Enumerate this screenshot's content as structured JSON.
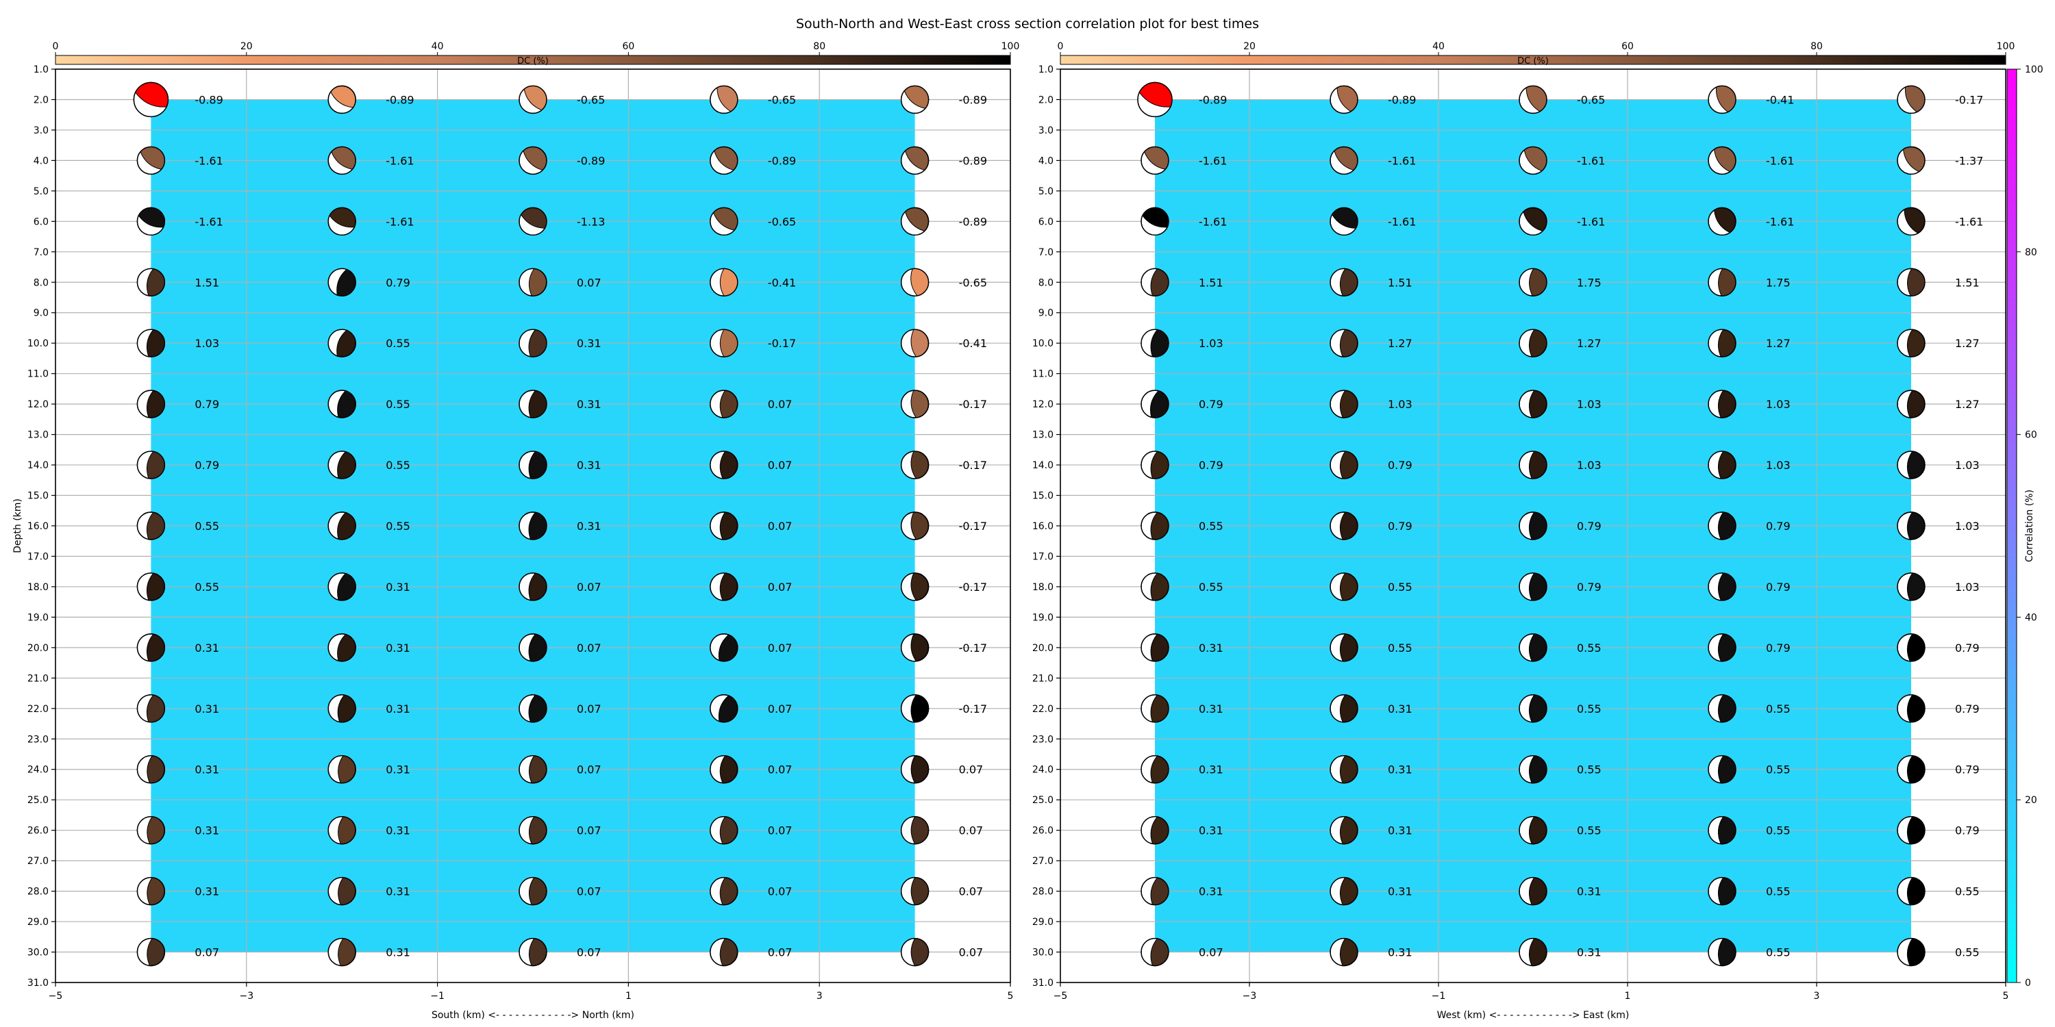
{
  "figure": {
    "title": "South-North and West-East cross section correlation plot for best times"
  },
  "colors": {
    "fill_region": "#29d6fb",
    "grid": "#b0b0b0",
    "axes": "#000000"
  },
  "dc_colorbar": {
    "label": "DC (%)",
    "ticks": [
      "0",
      "20",
      "40",
      "60",
      "80",
      "100"
    ],
    "stops": [
      "#fcd6a0",
      "#f09a6a",
      "#c8815c",
      "#8a5a3e",
      "#4a3020",
      "#000000"
    ]
  },
  "correlation_colorbar": {
    "label": "Correlation (%)",
    "ticks": [
      "0",
      "20",
      "40",
      "60",
      "80",
      "100"
    ],
    "stops": [
      "#00ffff",
      "#ff00ff"
    ]
  },
  "chart_data": [
    {
      "type": "scatter",
      "title": "",
      "xlabel": "South (km) <- - - - - - - - - - - -> North (km)",
      "ylabel": "Depth (km)",
      "xlim": [
        -5,
        5
      ],
      "ylim": [
        31,
        1
      ],
      "xticks": [
        -5,
        -3,
        -1,
        1,
        3,
        5
      ],
      "xtick_labels": [
        "−5",
        "−3",
        "−1",
        "1",
        "3",
        "5"
      ],
      "yticks": [
        1,
        2,
        3,
        4,
        5,
        6,
        7,
        8,
        9,
        10,
        11,
        12,
        13,
        14,
        15,
        16,
        17,
        18,
        19,
        20,
        21,
        22,
        23,
        24,
        25,
        26,
        27,
        28,
        29,
        30,
        31
      ],
      "ytick_labels": [
        "1.0",
        "2.0",
        "3.0",
        "4.0",
        "5.0",
        "6.0",
        "7.0",
        "8.0",
        "9.0",
        "10.0",
        "11.0",
        "12.0",
        "13.0",
        "14.0",
        "15.0",
        "16.0",
        "17.0",
        "18.0",
        "19.0",
        "20.0",
        "21.0",
        "22.0",
        "23.0",
        "24.0",
        "25.0",
        "26.0",
        "27.0",
        "28.0",
        "29.0",
        "30.0",
        "31.0"
      ],
      "fill_region": {
        "x": [
          -4,
          4
        ],
        "y": [
          2,
          30
        ]
      },
      "x": [
        -4,
        -2,
        0,
        2,
        4
      ],
      "depths": [
        2,
        4,
        6,
        8,
        10,
        12,
        14,
        16,
        18,
        20,
        22,
        24,
        26,
        28,
        30
      ],
      "labels": [
        [
          "-0.89",
          "-0.89",
          "-0.65",
          "-0.65",
          "-0.89"
        ],
        [
          "-1.61",
          "-1.61",
          "-0.89",
          "-0.89",
          "-0.89"
        ],
        [
          "-1.61",
          "-1.61",
          "-1.13",
          "-0.65",
          "-0.89"
        ],
        [
          "1.51",
          "0.79",
          "0.07",
          "-0.41",
          "-0.65"
        ],
        [
          "1.03",
          "0.55",
          "0.31",
          "-0.17",
          "-0.41"
        ],
        [
          "0.79",
          "0.55",
          "0.31",
          "0.07",
          "-0.17"
        ],
        [
          "0.79",
          "0.55",
          "0.31",
          "0.07",
          "-0.17"
        ],
        [
          "0.55",
          "0.55",
          "0.31",
          "0.07",
          "-0.17"
        ],
        [
          "0.55",
          "0.31",
          "0.07",
          "0.07",
          "-0.17"
        ],
        [
          "0.31",
          "0.31",
          "0.07",
          "0.07",
          "-0.17"
        ],
        [
          "0.31",
          "0.31",
          "0.07",
          "0.07",
          "-0.17"
        ],
        [
          "0.31",
          "0.31",
          "0.07",
          "0.07",
          "0.07"
        ],
        [
          "0.31",
          "0.31",
          "0.07",
          "0.07",
          "0.07"
        ],
        [
          "0.31",
          "0.31",
          "0.07",
          "0.07",
          "0.07"
        ],
        [
          "0.07",
          "0.31",
          "0.07",
          "0.07",
          "0.07"
        ]
      ],
      "mechanisms": [
        [
          {
            "c": "#ff0000",
            "s": "large",
            "a": 25
          },
          {
            "c": "#e8915f",
            "a": 35
          },
          {
            "c": "#d88a5c",
            "a": 50
          },
          {
            "c": "#c8815c",
            "a": 60
          },
          {
            "c": "#b0704a",
            "a": 40
          }
        ],
        [
          {
            "c": "#8a5a3e",
            "a": 40
          },
          {
            "c": "#8a5a3e",
            "a": 40
          },
          {
            "c": "#8a5a3e",
            "a": 45
          },
          {
            "c": "#8a5a3e",
            "a": 45
          },
          {
            "c": "#8a5a3e",
            "a": 45
          }
        ],
        [
          {
            "c": "#111111",
            "a": 25
          },
          {
            "c": "#3a2414",
            "a": 25
          },
          {
            "c": "#4a3020",
            "a": 30
          },
          {
            "c": "#7a5034",
            "a": 40
          },
          {
            "c": "#7a5034",
            "a": 45
          }
        ],
        [
          {
            "c": "#4a3020",
            "a": 100
          },
          {
            "c": "#111111",
            "a": 110
          },
          {
            "c": "#7a5034",
            "a": 95
          },
          {
            "c": "#e8915f",
            "a": 90
          },
          {
            "c": "#e8915f",
            "a": 80
          }
        ],
        [
          {
            "c": "#2a1a10",
            "a": 100
          },
          {
            "c": "#2a1a10",
            "a": 110
          },
          {
            "c": "#4a3020",
            "a": 100
          },
          {
            "c": "#b0704a",
            "a": 90
          },
          {
            "c": "#c8815c",
            "a": 85
          }
        ],
        [
          {
            "c": "#2a1a10",
            "a": 100
          },
          {
            "c": "#111111",
            "a": 105
          },
          {
            "c": "#2a1a10",
            "a": 100
          },
          {
            "c": "#5a3a24",
            "a": 95
          },
          {
            "c": "#8a5a3e",
            "a": 85
          }
        ],
        [
          {
            "c": "#4a3020",
            "a": 100
          },
          {
            "c": "#2a1a10",
            "a": 105
          },
          {
            "c": "#111111",
            "a": 100
          },
          {
            "c": "#2a1a10",
            "a": 95
          },
          {
            "c": "#5a3a24",
            "a": 85
          }
        ],
        [
          {
            "c": "#4a3020",
            "a": 100
          },
          {
            "c": "#2a1a10",
            "a": 105
          },
          {
            "c": "#111111",
            "a": 100
          },
          {
            "c": "#2a1a10",
            "a": 95
          },
          {
            "c": "#5a3a24",
            "a": 85
          }
        ],
        [
          {
            "c": "#2a1a10",
            "a": 100
          },
          {
            "c": "#111111",
            "a": 105
          },
          {
            "c": "#2a1a10",
            "a": 100
          },
          {
            "c": "#2a1a10",
            "a": 95
          },
          {
            "c": "#3a2414",
            "a": 85
          }
        ],
        [
          {
            "c": "#2a1a10",
            "a": 100
          },
          {
            "c": "#2a1a10",
            "a": 105
          },
          {
            "c": "#111111",
            "a": 100
          },
          {
            "c": "#111111",
            "a": 110
          },
          {
            "c": "#2a1a10",
            "a": 85
          }
        ],
        [
          {
            "c": "#4a3020",
            "a": 100
          },
          {
            "c": "#2a1a10",
            "a": 100
          },
          {
            "c": "#111111",
            "a": 100
          },
          {
            "c": "#111111",
            "a": 110
          },
          {
            "c": "#000000",
            "a": 95
          }
        ],
        [
          {
            "c": "#4a3020",
            "a": 95
          },
          {
            "c": "#5a3a24",
            "a": 95
          },
          {
            "c": "#4a3020",
            "a": 95
          },
          {
            "c": "#2a1a10",
            "a": 95
          },
          {
            "c": "#2a1a10",
            "a": 90
          }
        ],
        [
          {
            "c": "#5a3a24",
            "a": 95
          },
          {
            "c": "#5a3a24",
            "a": 95
          },
          {
            "c": "#4a3020",
            "a": 95
          },
          {
            "c": "#4a3020",
            "a": 95
          },
          {
            "c": "#4a3020",
            "a": 90
          }
        ],
        [
          {
            "c": "#5a3a24",
            "a": 95
          },
          {
            "c": "#4a3020",
            "a": 95
          },
          {
            "c": "#4a3020",
            "a": 95
          },
          {
            "c": "#4a3020",
            "a": 95
          },
          {
            "c": "#4a3020",
            "a": 90
          }
        ],
        [
          {
            "c": "#4a3020",
            "a": 95
          },
          {
            "c": "#5a3a24",
            "a": 95
          },
          {
            "c": "#4a3020",
            "a": 95
          },
          {
            "c": "#4a3020",
            "a": 95
          },
          {
            "c": "#4a3020",
            "a": 90
          }
        ]
      ]
    },
    {
      "type": "scatter",
      "title": "",
      "xlabel": "West (km) <- - - - - - - - - - - -> East (km)",
      "ylabel": "",
      "xlim": [
        -5,
        5
      ],
      "ylim": [
        31,
        1
      ],
      "xticks": [
        -5,
        -3,
        -1,
        1,
        3,
        5
      ],
      "xtick_labels": [
        "−5",
        "−3",
        "−1",
        "1",
        "3",
        "5"
      ],
      "yticks": [
        1,
        2,
        3,
        4,
        5,
        6,
        7,
        8,
        9,
        10,
        11,
        12,
        13,
        14,
        15,
        16,
        17,
        18,
        19,
        20,
        21,
        22,
        23,
        24,
        25,
        26,
        27,
        28,
        29,
        30,
        31
      ],
      "ytick_labels": [
        "1.0",
        "2.0",
        "3.0",
        "4.0",
        "5.0",
        "6.0",
        "7.0",
        "8.0",
        "9.0",
        "10.0",
        "11.0",
        "12.0",
        "13.0",
        "14.0",
        "15.0",
        "16.0",
        "17.0",
        "18.0",
        "19.0",
        "20.0",
        "21.0",
        "22.0",
        "23.0",
        "24.0",
        "25.0",
        "26.0",
        "27.0",
        "28.0",
        "29.0",
        "30.0",
        "31.0"
      ],
      "fill_region": {
        "x": [
          -4,
          4
        ],
        "y": [
          2,
          30
        ]
      },
      "x": [
        -4,
        -2,
        0,
        2,
        4
      ],
      "depths": [
        2,
        4,
        6,
        8,
        10,
        12,
        14,
        16,
        18,
        20,
        22,
        24,
        26,
        28,
        30
      ],
      "labels": [
        [
          "-0.89",
          "-0.89",
          "-0.65",
          "-0.41",
          "-0.17"
        ],
        [
          "-1.61",
          "-1.61",
          "-1.61",
          "-1.61",
          "-1.37"
        ],
        [
          "-1.61",
          "-1.61",
          "-1.61",
          "-1.61",
          "-1.61"
        ],
        [
          "1.51",
          "1.51",
          "1.75",
          "1.75",
          "1.51"
        ],
        [
          "1.03",
          "1.27",
          "1.27",
          "1.27",
          "1.27"
        ],
        [
          "0.79",
          "1.03",
          "1.03",
          "1.03",
          "1.27"
        ],
        [
          "0.79",
          "0.79",
          "1.03",
          "1.03",
          "1.03"
        ],
        [
          "0.55",
          "0.79",
          "0.79",
          "0.79",
          "1.03"
        ],
        [
          "0.55",
          "0.55",
          "0.79",
          "0.79",
          "1.03"
        ],
        [
          "0.31",
          "0.55",
          "0.55",
          "0.79",
          "0.79"
        ],
        [
          "0.31",
          "0.31",
          "0.55",
          "0.55",
          "0.79"
        ],
        [
          "0.31",
          "0.31",
          "0.55",
          "0.55",
          "0.79"
        ],
        [
          "0.31",
          "0.31",
          "0.55",
          "0.55",
          "0.79"
        ],
        [
          "0.31",
          "0.31",
          "0.31",
          "0.55",
          "0.55"
        ],
        [
          "0.07",
          "0.31",
          "0.31",
          "0.55",
          "0.55"
        ]
      ],
      "mechanisms": [
        [
          {
            "c": "#ff0000",
            "s": "large",
            "a": 25
          },
          {
            "c": "#a86a48",
            "a": 60
          },
          {
            "c": "#9a6244",
            "a": 60
          },
          {
            "c": "#9a6244",
            "a": 65
          },
          {
            "c": "#8a5a3e",
            "a": 65
          }
        ],
        [
          {
            "c": "#8a5a3e",
            "a": 40
          },
          {
            "c": "#8a5a3e",
            "a": 45
          },
          {
            "c": "#8a5a3e",
            "a": 50
          },
          {
            "c": "#8a5a3e",
            "a": 55
          },
          {
            "c": "#8a5a3e",
            "a": 55
          }
        ],
        [
          {
            "c": "#000000",
            "a": 25
          },
          {
            "c": "#111111",
            "a": 30
          },
          {
            "c": "#2a1a10",
            "a": 45
          },
          {
            "c": "#2a1a10",
            "a": 55
          },
          {
            "c": "#2a1a10",
            "a": 60
          }
        ],
        [
          {
            "c": "#4a3020",
            "a": 100
          },
          {
            "c": "#4a3020",
            "a": 95
          },
          {
            "c": "#5a3a24",
            "a": 92
          },
          {
            "c": "#5a3a24",
            "a": 92
          },
          {
            "c": "#4a3020",
            "a": 92
          }
        ],
        [
          {
            "c": "#111111",
            "a": 100
          },
          {
            "c": "#4a3020",
            "a": 95
          },
          {
            "c": "#3a2414",
            "a": 95
          },
          {
            "c": "#3a2414",
            "a": 95
          },
          {
            "c": "#3a2414",
            "a": 95
          }
        ],
        [
          {
            "c": "#111111",
            "a": 105
          },
          {
            "c": "#3a2414",
            "a": 95
          },
          {
            "c": "#2a1a10",
            "a": 95
          },
          {
            "c": "#2a1a10",
            "a": 95
          },
          {
            "c": "#2a1a10",
            "a": 95
          }
        ],
        [
          {
            "c": "#3a2414",
            "a": 100
          },
          {
            "c": "#3a2414",
            "a": 95
          },
          {
            "c": "#2a1a10",
            "a": 95
          },
          {
            "c": "#2a1a10",
            "a": 95
          },
          {
            "c": "#111111",
            "a": 95
          }
        ],
        [
          {
            "c": "#3a2414",
            "a": 100
          },
          {
            "c": "#2a1a10",
            "a": 95
          },
          {
            "c": "#111111",
            "a": 95
          },
          {
            "c": "#111111",
            "a": 95
          },
          {
            "c": "#111111",
            "a": 95
          }
        ],
        [
          {
            "c": "#3a2414",
            "a": 100
          },
          {
            "c": "#3a2414",
            "a": 95
          },
          {
            "c": "#111111",
            "a": 95
          },
          {
            "c": "#111111",
            "a": 95
          },
          {
            "c": "#111111",
            "a": 95
          }
        ],
        [
          {
            "c": "#2a1a10",
            "a": 100
          },
          {
            "c": "#2a1a10",
            "a": 95
          },
          {
            "c": "#111111",
            "a": 95
          },
          {
            "c": "#111111",
            "a": 95
          },
          {
            "c": "#000000",
            "a": 95
          }
        ],
        [
          {
            "c": "#3a2414",
            "a": 100
          },
          {
            "c": "#2a1a10",
            "a": 95
          },
          {
            "c": "#111111",
            "a": 95
          },
          {
            "c": "#111111",
            "a": 95
          },
          {
            "c": "#000000",
            "a": 95
          }
        ],
        [
          {
            "c": "#3a2414",
            "a": 100
          },
          {
            "c": "#3a2414",
            "a": 95
          },
          {
            "c": "#111111",
            "a": 95
          },
          {
            "c": "#111111",
            "a": 95
          },
          {
            "c": "#000000",
            "a": 95
          }
        ],
        [
          {
            "c": "#3a2414",
            "a": 100
          },
          {
            "c": "#3a2414",
            "a": 95
          },
          {
            "c": "#2a1a10",
            "a": 95
          },
          {
            "c": "#111111",
            "a": 95
          },
          {
            "c": "#000000",
            "a": 95
          }
        ],
        [
          {
            "c": "#4a3020",
            "a": 100
          },
          {
            "c": "#3a2414",
            "a": 95
          },
          {
            "c": "#2a1a10",
            "a": 95
          },
          {
            "c": "#111111",
            "a": 95
          },
          {
            "c": "#000000",
            "a": 95
          }
        ],
        [
          {
            "c": "#4a3020",
            "a": 100
          },
          {
            "c": "#3a2414",
            "a": 95
          },
          {
            "c": "#2a1a10",
            "a": 95
          },
          {
            "c": "#111111",
            "a": 95
          },
          {
            "c": "#000000",
            "a": 95
          }
        ]
      ]
    }
  ]
}
